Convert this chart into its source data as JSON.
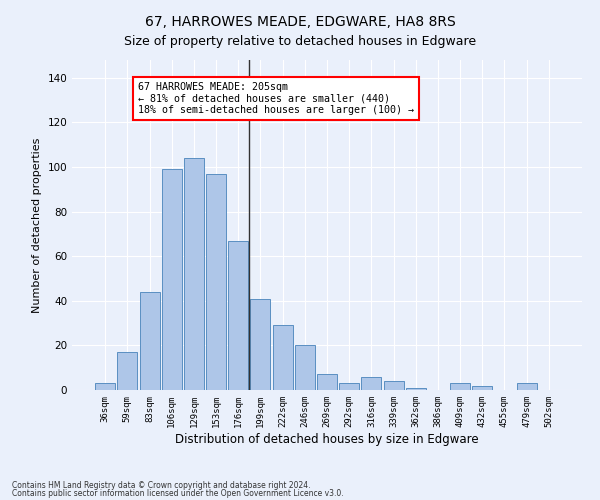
{
  "title": "67, HARROWES MEADE, EDGWARE, HA8 8RS",
  "subtitle": "Size of property relative to detached houses in Edgware",
  "xlabel": "Distribution of detached houses by size in Edgware",
  "ylabel": "Number of detached properties",
  "bar_labels": [
    "36sqm",
    "59sqm",
    "83sqm",
    "106sqm",
    "129sqm",
    "153sqm",
    "176sqm",
    "199sqm",
    "222sqm",
    "246sqm",
    "269sqm",
    "292sqm",
    "316sqm",
    "339sqm",
    "362sqm",
    "386sqm",
    "409sqm",
    "432sqm",
    "455sqm",
    "479sqm",
    "502sqm"
  ],
  "bar_values": [
    3,
    17,
    44,
    99,
    104,
    97,
    67,
    41,
    29,
    20,
    7,
    3,
    6,
    4,
    1,
    0,
    3,
    2,
    0,
    3,
    0
  ],
  "bar_color": "#aec6e8",
  "bar_edge_color": "#5a8fc2",
  "vline_x": 6.5,
  "vline_color": "#333333",
  "annotation_text": "67 HARROWES MEADE: 205sqm\n← 81% of detached houses are smaller (440)\n18% of semi-detached houses are larger (100) →",
  "annotation_box_color": "white",
  "annotation_box_edge_color": "red",
  "yticks": [
    0,
    20,
    40,
    60,
    80,
    100,
    120,
    140
  ],
  "ylim": [
    0,
    148
  ],
  "bg_color": "#eaf0fb",
  "plot_bg_color": "#eaf0fb",
  "footer1": "Contains HM Land Registry data © Crown copyright and database right 2024.",
  "footer2": "Contains public sector information licensed under the Open Government Licence v3.0.",
  "title_fontsize": 10,
  "subtitle_fontsize": 9,
  "grid_color": "#ffffff"
}
